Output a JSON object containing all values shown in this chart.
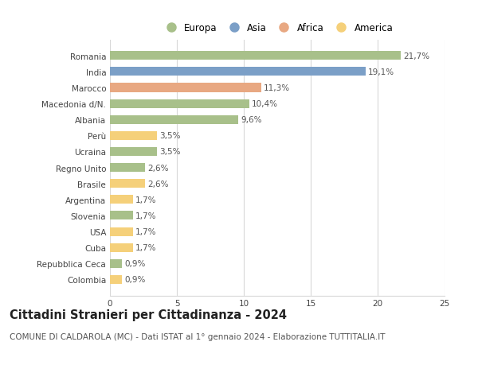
{
  "categories": [
    "Romania",
    "India",
    "Marocco",
    "Macedonia d/N.",
    "Albania",
    "Perù",
    "Ucraina",
    "Regno Unito",
    "Brasile",
    "Argentina",
    "Slovenia",
    "USA",
    "Cuba",
    "Repubblica Ceca",
    "Colombia"
  ],
  "values": [
    21.7,
    19.1,
    11.3,
    10.4,
    9.6,
    3.5,
    3.5,
    2.6,
    2.6,
    1.7,
    1.7,
    1.7,
    1.7,
    0.9,
    0.9
  ],
  "continents": [
    "Europa",
    "Asia",
    "Africa",
    "Europa",
    "Europa",
    "America",
    "Europa",
    "Europa",
    "America",
    "America",
    "Europa",
    "America",
    "America",
    "Europa",
    "America"
  ],
  "continent_colors": {
    "Europa": "#a8c08a",
    "Asia": "#7b9fc7",
    "Africa": "#e8a882",
    "America": "#f5d07a"
  },
  "legend_order": [
    "Europa",
    "Asia",
    "Africa",
    "America"
  ],
  "title": "Cittadini Stranieri per Cittadinanza - 2024",
  "subtitle": "COMUNE DI CALDAROLA (MC) - Dati ISTAT al 1° gennaio 2024 - Elaborazione TUTTITALIA.IT",
  "xlim": [
    0,
    25
  ],
  "xticks": [
    0,
    5,
    10,
    15,
    20,
    25
  ],
  "background_color": "#ffffff",
  "grid_color": "#d8d8d8",
  "bar_height": 0.55,
  "label_fontsize": 7.5,
  "title_fontsize": 10.5,
  "subtitle_fontsize": 7.5,
  "tick_fontsize": 7.5,
  "legend_fontsize": 8.5
}
